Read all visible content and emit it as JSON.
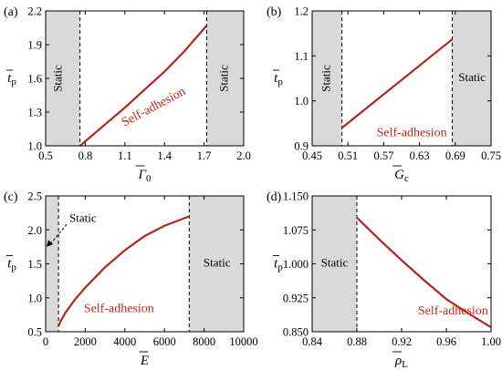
{
  "colors": {
    "curve": "#b3261e",
    "curve_label": "#c0281c",
    "shade": "#d9d9d9",
    "axis": "#000000"
  },
  "chart_data": [
    {
      "panel": "(a)",
      "type": "line",
      "xlabel": {
        "main": "Γ",
        "sub": "0",
        "bar": true,
        "italic": true
      },
      "ylabel": {
        "main": "t",
        "sub": "p",
        "bar": true
      },
      "xlim": [
        0.5,
        2.0
      ],
      "ylim": [
        1.0,
        2.2
      ],
      "xticks": [
        0.5,
        0.8,
        1.1,
        1.4,
        1.7,
        2.0
      ],
      "xtick_labels": [
        "0.5",
        "0.8",
        "1.1",
        "1.4",
        "1.7",
        "2.0"
      ],
      "yticks": [
        1.0,
        1.3,
        1.6,
        1.9,
        2.2
      ],
      "ytick_labels": [
        "1.0",
        "1.3",
        "1.6",
        "1.9",
        "2.2"
      ],
      "shaded": [
        {
          "from": 0.5,
          "to": 0.76
        },
        {
          "from": 1.72,
          "to": 2.0
        }
      ],
      "dashed": [
        0.76,
        1.72
      ],
      "series": [
        {
          "x": [
            0.76,
            0.95,
            1.1,
            1.25,
            1.4,
            1.55,
            1.72
          ],
          "y": [
            1.0,
            1.19,
            1.34,
            1.5,
            1.66,
            1.84,
            2.07
          ]
        }
      ],
      "labels": [
        {
          "text": "Static",
          "x": 0.6,
          "y": 1.6,
          "rotate": -90,
          "style": "region"
        },
        {
          "text": "Static",
          "x": 1.86,
          "y": 1.6,
          "rotate": -90,
          "style": "region"
        },
        {
          "text": "Self-adhesion",
          "x": 1.32,
          "y": 1.34,
          "rotate": -28,
          "style": "curve"
        }
      ]
    },
    {
      "panel": "(b)",
      "type": "line",
      "xlabel": {
        "main": "G",
        "sub": "c",
        "bar": true,
        "italic": true
      },
      "ylabel": {
        "main": "t",
        "sub": "p",
        "bar": true
      },
      "xlim": [
        0.45,
        0.75
      ],
      "ylim": [
        0.9,
        1.2
      ],
      "xticks": [
        0.45,
        0.51,
        0.57,
        0.63,
        0.69,
        0.75
      ],
      "xtick_labels": [
        "0.45",
        "0.51",
        "0.57",
        "0.63",
        "0.69",
        "0.75"
      ],
      "yticks": [
        0.9,
        1.0,
        1.1,
        1.2
      ],
      "ytick_labels": [
        "0.9",
        "1.0",
        "1.1",
        "1.2"
      ],
      "shaded": [
        {
          "from": 0.45,
          "to": 0.5
        },
        {
          "from": 0.685,
          "to": 0.75
        }
      ],
      "dashed": [
        0.5,
        0.685
      ],
      "series": [
        {
          "x": [
            0.5,
            0.685
          ],
          "y": [
            0.94,
            1.137
          ]
        }
      ],
      "labels": [
        {
          "text": "Static",
          "x": 0.475,
          "y": 1.05,
          "rotate": -90,
          "style": "region"
        },
        {
          "text": "Static",
          "x": 0.718,
          "y": 1.05,
          "rotate": 0,
          "style": "region"
        },
        {
          "text": "Self-adhesion",
          "x": 0.617,
          "y": 0.928,
          "rotate": 0,
          "style": "curve"
        }
      ]
    },
    {
      "panel": "(c)",
      "type": "line",
      "xlabel": {
        "main": "E",
        "sub": "",
        "bar": true,
        "italic": true
      },
      "ylabel": {
        "main": "t",
        "sub": "p",
        "bar": true
      },
      "xlim": [
        0,
        10000
      ],
      "ylim": [
        0.5,
        2.5
      ],
      "xticks": [
        0,
        2000,
        4000,
        6000,
        8000,
        10000
      ],
      "xtick_labels": [
        "0",
        "2000",
        "4000",
        "6000",
        "8000",
        "10000"
      ],
      "yticks": [
        0.5,
        1.0,
        1.5,
        2.0,
        2.5
      ],
      "ytick_labels": [
        "0.5",
        "1.0",
        "1.5",
        "2.0",
        "2.5"
      ],
      "shaded": [
        {
          "from": 0,
          "to": 650
        },
        {
          "from": 7250,
          "to": 10000
        }
      ],
      "dashed": [
        650,
        7250
      ],
      "series": [
        {
          "x": [
            650,
            700,
            800,
            1000,
            1500,
            2000,
            3000,
            4000,
            5000,
            6000,
            7250
          ],
          "y": [
            0.58,
            0.62,
            0.68,
            0.78,
            0.98,
            1.15,
            1.45,
            1.7,
            1.91,
            2.06,
            2.2
          ]
        }
      ],
      "labels": [
        {
          "text": "Static",
          "x": 8650,
          "y": 1.5,
          "rotate": 0,
          "style": "region"
        },
        {
          "text": "Self-adhesion",
          "x": 3700,
          "y": 0.83,
          "rotate": 0,
          "style": "curve"
        }
      ],
      "annotation": {
        "text": "Static",
        "text_x": 1200,
        "text_y": 2.12,
        "arrow_to_x": 40,
        "arrow_to_y": 1.75
      }
    },
    {
      "panel": "(d)",
      "type": "line",
      "xlabel": {
        "main": "ρ",
        "sub": "L",
        "bar": true,
        "italic": true
      },
      "ylabel": {
        "main": "t",
        "sub": "p",
        "bar": true
      },
      "xlim": [
        0.84,
        1.0
      ],
      "ylim": [
        0.85,
        1.15
      ],
      "xticks": [
        0.84,
        0.88,
        0.92,
        0.96,
        1.0
      ],
      "xtick_labels": [
        "0.84",
        "0.88",
        "0.92",
        "0.96",
        "1.00"
      ],
      "yticks": [
        0.85,
        0.925,
        1.0,
        1.075,
        1.15
      ],
      "ytick_labels": [
        "0.850",
        "0.925",
        "1.000",
        "1.075",
        "1.150"
      ],
      "shaded": [
        {
          "from": 0.84,
          "to": 0.88
        }
      ],
      "dashed": [
        0.88
      ],
      "series": [
        {
          "x": [
            0.88,
            0.9,
            0.92,
            0.94,
            0.96,
            0.98,
            1.0
          ],
          "y": [
            1.102,
            1.054,
            1.008,
            0.964,
            0.922,
            0.89,
            0.86
          ]
        }
      ],
      "labels": [
        {
          "text": "Static",
          "x": 0.86,
          "y": 1.0,
          "rotate": 0,
          "style": "region"
        },
        {
          "text": "Self-adhesion",
          "x": 0.966,
          "y": 0.895,
          "rotate": 0,
          "style": "curve"
        }
      ]
    }
  ]
}
